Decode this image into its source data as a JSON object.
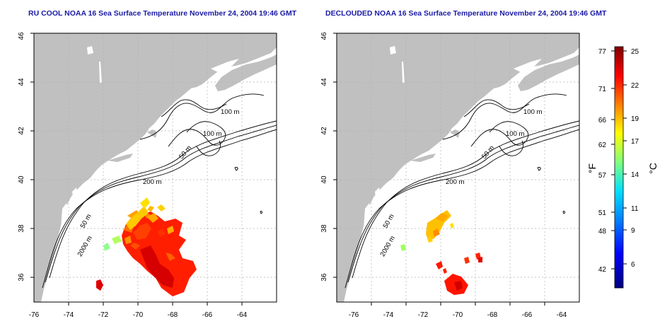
{
  "panels": [
    {
      "title": "RU COOL NOAA 16 Sea Surface Temperature November 24, 2004 19:46 GMT",
      "x_ticks": [
        "-76",
        "-74",
        "-72",
        "-70",
        "-68",
        "-66",
        "-64"
      ],
      "y_ticks": [
        "36",
        "38",
        "40",
        "42",
        "44",
        "46"
      ],
      "contour_labels": [
        "100 m",
        "100 m",
        "50 m",
        "200 m",
        "50 m",
        "2000 m"
      ]
    },
    {
      "title": "DECLOUDED NOAA 16 Sea Surface Temperature November 24, 2004 19:46 GMT",
      "x_ticks": [
        "-76",
        "-74",
        "-72",
        "-70",
        "-68",
        "-66",
        "-64"
      ],
      "y_ticks": [
        "36",
        "38",
        "40",
        "42",
        "44",
        "46"
      ],
      "contour_labels": [
        "100 m",
        "100 m",
        "50 m",
        "200 m",
        "50 m",
        "2000 m"
      ]
    }
  ],
  "colorbar": {
    "f_ticks": [
      "77",
      "71",
      "66",
      "62",
      "57",
      "51",
      "48",
      "42"
    ],
    "c_ticks": [
      "25",
      "22",
      "19",
      "17",
      "14",
      "11",
      "9",
      "6"
    ],
    "f_label": "°F",
    "c_label": "°C",
    "colors": [
      "#00007f",
      "#0000ff",
      "#0080ff",
      "#00ffff",
      "#80ff80",
      "#ffff00",
      "#ff8000",
      "#ff0000",
      "#7f0000"
    ]
  },
  "map": {
    "land_color": "#c0c0c0",
    "ocean_color": "#ffffff",
    "x_range": [
      -77,
      -63
    ],
    "y_range": [
      35,
      46
    ]
  }
}
